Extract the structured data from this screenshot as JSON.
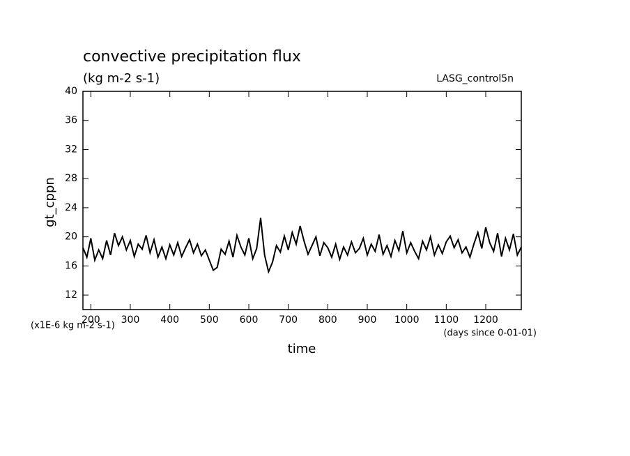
{
  "chart_data": {
    "type": "line",
    "title": "convective precipitation flux",
    "subtitle": "(kg m-2 s-1)",
    "annotation": "LASG_control5n",
    "ylabel": "gt_cppn",
    "yunits": "(x1E-6 kg m-2 s-1)",
    "xlabel": "time",
    "xunits": "(days since 0-01-01)",
    "color": "#000000",
    "xlim": [
      180,
      1290
    ],
    "ylim": [
      10,
      40
    ],
    "xticks": [
      200,
      300,
      400,
      500,
      600,
      700,
      800,
      900,
      1000,
      1100,
      1200
    ],
    "yticks": [
      12,
      16,
      20,
      24,
      28,
      32,
      36,
      40
    ],
    "x": [
      180,
      190,
      200,
      210,
      220,
      230,
      240,
      250,
      260,
      270,
      280,
      290,
      300,
      310,
      320,
      330,
      340,
      350,
      360,
      370,
      380,
      390,
      400,
      410,
      420,
      430,
      440,
      450,
      460,
      470,
      480,
      490,
      500,
      510,
      520,
      530,
      540,
      550,
      560,
      570,
      580,
      590,
      600,
      610,
      620,
      630,
      640,
      650,
      660,
      670,
      680,
      690,
      700,
      710,
      720,
      730,
      740,
      750,
      760,
      770,
      780,
      790,
      800,
      810,
      820,
      830,
      840,
      850,
      860,
      870,
      880,
      890,
      900,
      910,
      920,
      930,
      940,
      950,
      960,
      970,
      980,
      990,
      1000,
      1010,
      1020,
      1030,
      1040,
      1050,
      1060,
      1070,
      1080,
      1090,
      1100,
      1110,
      1120,
      1130,
      1140,
      1150,
      1160,
      1170,
      1180,
      1190,
      1200,
      1210,
      1220,
      1230,
      1240,
      1250,
      1260,
      1270,
      1280,
      1290
    ],
    "values": [
      18.5,
      17.2,
      19.8,
      16.8,
      18.2,
      17.0,
      19.5,
      17.5,
      20.5,
      18.8,
      20.0,
      18.2,
      19.5,
      17.3,
      19.0,
      18.3,
      20.2,
      17.8,
      19.6,
      17.2,
      18.6,
      17.0,
      18.9,
      17.5,
      19.2,
      17.3,
      18.5,
      19.6,
      17.8,
      19.0,
      17.4,
      18.2,
      16.8,
      15.4,
      15.8,
      18.3,
      17.6,
      19.4,
      17.2,
      20.2,
      18.6,
      17.5,
      19.8,
      17.0,
      18.4,
      22.6,
      17.5,
      15.2,
      16.5,
      18.8,
      17.9,
      20.1,
      18.2,
      20.6,
      19.0,
      21.5,
      19.4,
      17.6,
      18.8,
      20.0,
      17.4,
      19.2,
      18.5,
      17.2,
      19.0,
      16.9,
      18.6,
      17.5,
      19.3,
      17.8,
      18.4,
      19.8,
      17.5,
      19.0,
      18.0,
      20.3,
      17.6,
      18.8,
      17.3,
      19.5,
      18.1,
      20.8,
      17.8,
      19.2,
      18.0,
      17.0,
      19.4,
      18.2,
      20.0,
      17.5,
      18.9,
      17.7,
      19.3,
      20.1,
      18.5,
      19.6,
      17.8,
      18.6,
      17.2,
      19.0,
      20.6,
      18.4,
      21.3,
      19.2,
      18.0,
      20.5,
      17.3,
      19.8,
      18.2,
      20.4,
      17.5,
      18.6
    ]
  }
}
